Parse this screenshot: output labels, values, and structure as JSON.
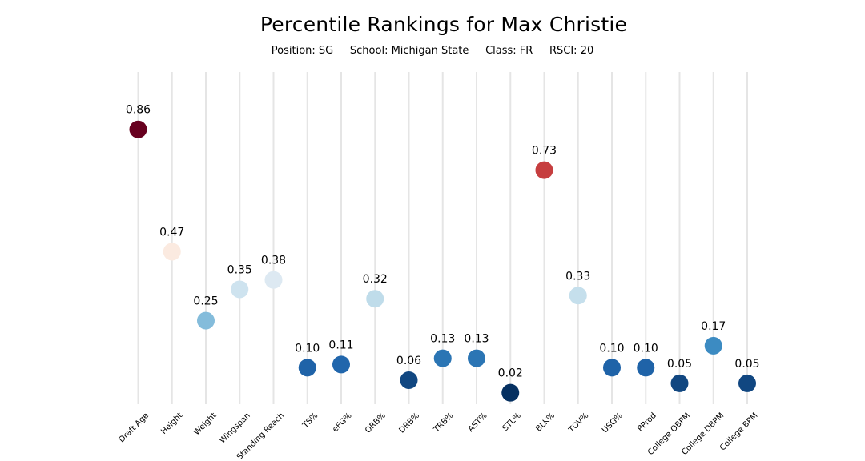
{
  "chart_data": {
    "type": "scatter",
    "title": "Percentile Rankings for Max Christie",
    "subtitle": {
      "position": "Position: SG",
      "school": "School: Michigan State",
      "class": "Class: FR",
      "rsci": "RSCI: 20"
    },
    "xlabel": "",
    "ylabel": "",
    "ylim": [
      0,
      1
    ],
    "grid": "vertical",
    "legend": "none",
    "colormap": "red-blue diverging (high = red, low = blue)",
    "categories": [
      "Draft Age",
      "Height",
      "Weight",
      "Wingspan",
      "Standing Reach",
      "TS%",
      "eFG%",
      "ORB%",
      "DRB%",
      "TRB%",
      "AST%",
      "STL%",
      "BLK%",
      "TOV%",
      "USG%",
      "PProd",
      "College OBPM",
      "College DBPM",
      "College BPM"
    ],
    "values": [
      0.86,
      0.47,
      0.25,
      0.35,
      0.38,
      0.1,
      0.11,
      0.32,
      0.06,
      0.13,
      0.13,
      0.02,
      0.73,
      0.33,
      0.1,
      0.1,
      0.05,
      0.17,
      0.05
    ],
    "value_labels": [
      "0.86",
      "0.47",
      "0.25",
      "0.35",
      "0.38",
      "0.10",
      "0.11",
      "0.32",
      "0.06",
      "0.13",
      "0.13",
      "0.02",
      "0.73",
      "0.33",
      "0.10",
      "0.10",
      "0.05",
      "0.17",
      "0.05"
    ],
    "point_colors": [
      "#67001f",
      "#fbeae0",
      "#84bcdb",
      "#cee3ef",
      "#dde9f2",
      "#1f63a8",
      "#2166ac",
      "#bfdcea",
      "#114781",
      "#2b75b4",
      "#2b75b4",
      "#053061",
      "#c63e3f",
      "#c5dfec",
      "#1f63a8",
      "#1f63a8",
      "#114781",
      "#3c8bc2",
      "#114781"
    ]
  }
}
